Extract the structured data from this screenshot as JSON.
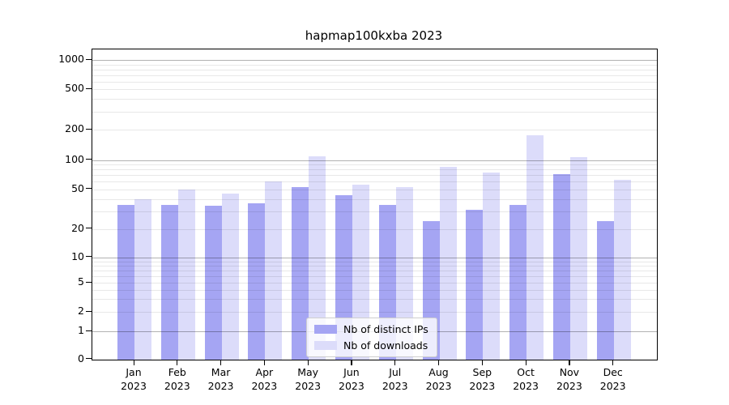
{
  "chart_data": {
    "type": "bar",
    "title": "hapmap100kxba 2023",
    "x_months": [
      "Jan",
      "Feb",
      "Mar",
      "Apr",
      "May",
      "Jun",
      "Jul",
      "Aug",
      "Sep",
      "Oct",
      "Nov",
      "Dec"
    ],
    "x_year": "2023",
    "series": [
      {
        "name": "Nb of distinct IPs",
        "color": "#a5a5f3",
        "values": [
          35,
          35,
          34,
          36,
          53,
          44,
          35,
          24,
          31,
          35,
          71,
          24
        ]
      },
      {
        "name": "Nb of downloads",
        "color": "#dcdcfa",
        "values": [
          40,
          50,
          45,
          60,
          110,
          56,
          53,
          85,
          74,
          178,
          108,
          63
        ]
      }
    ],
    "yticks": [
      0,
      1,
      2,
      5,
      10,
      20,
      50,
      100,
      200,
      500,
      1000
    ],
    "ylim": [
      0,
      1300
    ],
    "yscale": "symlog",
    "grid": "major+minor",
    "legend_position": "lower center",
    "colors": {
      "axis": "#000000",
      "grid_major": "#b3b3b3",
      "grid_minor": "#e8e8e8",
      "background": "#ffffff"
    }
  }
}
